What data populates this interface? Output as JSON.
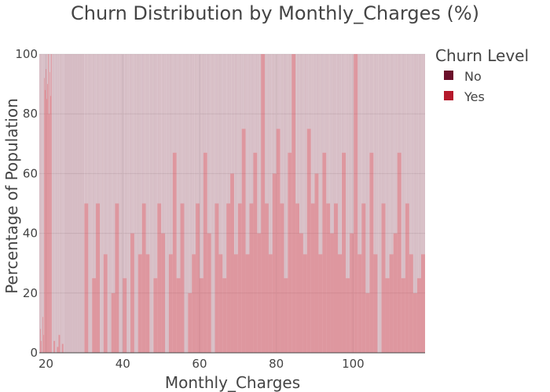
{
  "chart_data": {
    "type": "area",
    "title": "Churn Distribution by Monthly_Charges (%)",
    "xlabel": "Monthly_Charges",
    "ylabel": "Percentage of Population",
    "xlim": [
      18.25,
      118.75
    ],
    "ylim": [
      0,
      100
    ],
    "x_ticks": [
      20,
      40,
      60,
      80,
      100
    ],
    "y_ticks": [
      0,
      20,
      40,
      60,
      80,
      100
    ],
    "grid": true,
    "legend": {
      "title": "Churn Level",
      "placement": "top-right",
      "entries": [
        {
          "name": "No",
          "color": "#6b0f2a"
        },
        {
          "name": "Yes",
          "color": "#b5192b"
        }
      ]
    },
    "stacking": "percent",
    "series": [
      {
        "name": "No",
        "color": "#6b0f2a",
        "description_level": "upper band, remainder to 100%"
      },
      {
        "name": "Yes",
        "color": "#b5192b"
      }
    ],
    "yes_profile": [
      {
        "x_from": 18.25,
        "x_to": 19.5,
        "values": [
          0,
          8,
          4,
          0,
          12,
          6
        ]
      },
      {
        "x_from": 19.5,
        "x_to": 21.5,
        "values": [
          92,
          88,
          95,
          85,
          90,
          100,
          80,
          94,
          86,
          100
        ]
      },
      {
        "x_from": 21.5,
        "x_to": 25,
        "values": [
          0,
          4,
          0,
          2,
          6,
          0,
          3,
          0
        ]
      },
      {
        "x_from": 25,
        "x_to": 30,
        "values": [
          0,
          0,
          0,
          0,
          0,
          0,
          0,
          0
        ]
      },
      {
        "x_from": 30,
        "x_to": 45,
        "values": [
          50,
          0,
          25,
          50,
          0,
          33,
          0,
          20,
          50,
          0,
          25,
          0,
          40,
          0,
          33
        ]
      },
      {
        "x_from": 45,
        "x_to": 70,
        "values": [
          50,
          33,
          0,
          25,
          50,
          40,
          0,
          33,
          67,
          25,
          50,
          0,
          20,
          33,
          50,
          25,
          67,
          40,
          0,
          50,
          33,
          25,
          50,
          60,
          33
        ]
      },
      {
        "x_from": 70,
        "x_to": 95,
        "values": [
          50,
          75,
          33,
          50,
          67,
          40,
          100,
          50,
          33,
          60,
          75,
          50,
          25,
          67,
          100,
          50,
          40,
          33,
          75,
          50,
          60,
          33,
          67,
          50,
          40
        ]
      },
      {
        "x_from": 95,
        "x_to": 118.75,
        "values": [
          50,
          33,
          67,
          25,
          40,
          100,
          33,
          50,
          20,
          67,
          33,
          0,
          50,
          25,
          33,
          40,
          67,
          25,
          50,
          33,
          20,
          25,
          33
        ]
      }
    ]
  }
}
